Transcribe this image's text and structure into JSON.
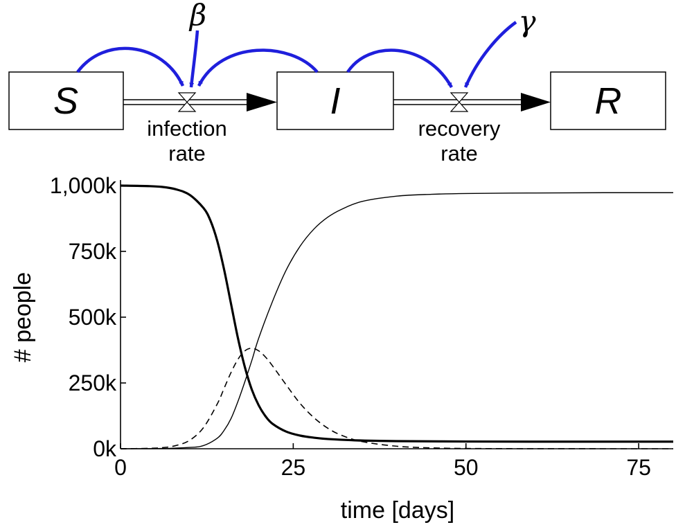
{
  "diagram": {
    "stocks": [
      {
        "id": "S",
        "label": "S"
      },
      {
        "id": "I",
        "label": "I"
      },
      {
        "id": "R",
        "label": "R"
      }
    ],
    "flows": [
      {
        "from": "S",
        "to": "I",
        "label_line1": "infection",
        "label_line2": "rate"
      },
      {
        "from": "I",
        "to": "R",
        "label_line1": "recovery",
        "label_line2": "rate"
      }
    ],
    "parameters": [
      {
        "id": "beta",
        "label": "β",
        "affects": "infection rate"
      },
      {
        "id": "gamma",
        "label": "γ",
        "affects": "recovery rate"
      }
    ],
    "influence_color": "#1f1fdc"
  },
  "chart_data": {
    "type": "line",
    "xlabel": "time [days]",
    "ylabel": "# people",
    "xlim": [
      0,
      80
    ],
    "ylim": [
      0,
      1000000
    ],
    "x_ticks": [
      0,
      25,
      50,
      75
    ],
    "x_tick_labels": [
      "0",
      "25",
      "50",
      "75"
    ],
    "y_ticks": [
      0,
      250000,
      500000,
      750000,
      1000000
    ],
    "y_tick_labels": [
      "0k",
      "250k",
      "500k",
      "750k",
      "1,000k"
    ],
    "grid": false,
    "legend": "none",
    "series": [
      {
        "name": "S",
        "style": "thick-solid",
        "x": [
          0,
          4,
          6,
          8,
          10,
          12,
          13,
          14,
          15,
          16,
          17,
          18,
          19,
          20,
          21,
          22,
          24,
          26,
          28,
          30,
          34,
          40,
          50,
          60,
          70,
          80
        ],
        "y": [
          1000000,
          998000,
          995000,
          986000,
          965000,
          915000,
          868000,
          790000,
          680000,
          550000,
          420000,
          310000,
          225000,
          165000,
          123000,
          95000,
          65000,
          50000,
          42000,
          37000,
          32000,
          29000,
          27500,
          27000,
          27000,
          27000
        ]
      },
      {
        "name": "I",
        "style": "dashed",
        "x": [
          0,
          4,
          6,
          8,
          10,
          12,
          14,
          15,
          16,
          17,
          18,
          19,
          20,
          21,
          22,
          24,
          26,
          28,
          30,
          32,
          35,
          40,
          45,
          50,
          60,
          70,
          80
        ],
        "y": [
          0,
          1500,
          4000,
          12000,
          32000,
          80000,
          170000,
          230000,
          290000,
          340000,
          372000,
          382000,
          372000,
          348000,
          315000,
          242000,
          172000,
          118000,
          78000,
          51000,
          27000,
          9500,
          3300,
          1100,
          150,
          20,
          0
        ]
      },
      {
        "name": "R",
        "style": "thin-solid",
        "x": [
          0,
          6,
          10,
          12,
          14,
          15,
          16,
          17,
          18,
          19,
          20,
          22,
          24,
          26,
          28,
          30,
          32,
          35,
          40,
          45,
          50,
          60,
          70,
          80
        ],
        "y": [
          0,
          1000,
          5000,
          12000,
          40000,
          70000,
          115000,
          180000,
          255000,
          335000,
          420000,
          560000,
          680000,
          770000,
          835000,
          880000,
          910000,
          940000,
          960000,
          967000,
          970000,
          972000,
          973000,
          973000
        ]
      }
    ]
  }
}
